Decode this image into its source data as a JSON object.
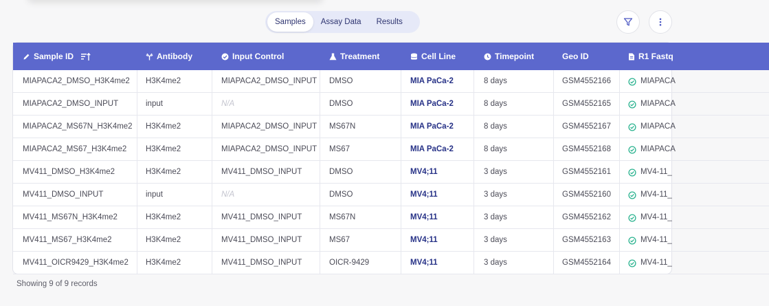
{
  "tabs": [
    {
      "label": "Samples",
      "active": true
    },
    {
      "label": "Assay Data",
      "active": false
    },
    {
      "label": "Results",
      "active": false
    }
  ],
  "toolbar": {
    "filter_icon": "filter-icon",
    "more_icon": "more-vertical-icon"
  },
  "columns": [
    {
      "label": "Sample ID",
      "icon": "pencil-icon"
    },
    {
      "label": "Antibody",
      "icon": "antibody-icon"
    },
    {
      "label": "Input Control",
      "icon": "check-circle-icon"
    },
    {
      "label": "Treatment",
      "icon": "flask-icon"
    },
    {
      "label": "Cell Line",
      "icon": "database-icon"
    },
    {
      "label": "Timepoint",
      "icon": "clock-icon"
    },
    {
      "label": "Geo ID",
      "icon": ""
    },
    {
      "label": "R1 Fastq",
      "icon": "file-icon"
    }
  ],
  "rows": [
    {
      "sample_id": "MIAPACA2_DMSO_H3K4me2",
      "antibody": "H3K4me2",
      "input_control": "MIAPACA2_DMSO_INPUT",
      "treatment": "DMSO",
      "cell_line": "MIA PaCa-2",
      "timepoint": "8 days",
      "geo_id": "GSM4552166",
      "r1_fastq": "MIAPACA"
    },
    {
      "sample_id": "MIAPACA2_DMSO_INPUT",
      "antibody": "input",
      "input_control": "N/A",
      "treatment": "DMSO",
      "cell_line": "MIA PaCa-2",
      "timepoint": "8 days",
      "geo_id": "GSM4552165",
      "r1_fastq": "MIAPACA"
    },
    {
      "sample_id": "MIAPACA2_MS67N_H3K4me2",
      "antibody": "H3K4me2",
      "input_control": "MIAPACA2_DMSO_INPUT",
      "treatment": "MS67N",
      "cell_line": "MIA PaCa-2",
      "timepoint": "8 days",
      "geo_id": "GSM4552167",
      "r1_fastq": "MIAPACA"
    },
    {
      "sample_id": "MIAPACA2_MS67_H3K4me2",
      "antibody": "H3K4me2",
      "input_control": "MIAPACA2_DMSO_INPUT",
      "treatment": "MS67",
      "cell_line": "MIA PaCa-2",
      "timepoint": "8 days",
      "geo_id": "GSM4552168",
      "r1_fastq": "MIAPACA"
    },
    {
      "sample_id": "MV411_DMSO_H3K4me2",
      "antibody": "H3K4me2",
      "input_control": "MV411_DMSO_INPUT",
      "treatment": "DMSO",
      "cell_line": "MV4;11",
      "timepoint": "3 days",
      "geo_id": "GSM4552161",
      "r1_fastq": "MV4-11_"
    },
    {
      "sample_id": "MV411_DMSO_INPUT",
      "antibody": "input",
      "input_control": "N/A",
      "treatment": "DMSO",
      "cell_line": "MV4;11",
      "timepoint": "3 days",
      "geo_id": "GSM4552160",
      "r1_fastq": "MV4-11_"
    },
    {
      "sample_id": "MV411_MS67N_H3K4me2",
      "antibody": "H3K4me2",
      "input_control": "MV411_DMSO_INPUT",
      "treatment": "MS67N",
      "cell_line": "MV4;11",
      "timepoint": "3 days",
      "geo_id": "GSM4552162",
      "r1_fastq": "MV4-11_"
    },
    {
      "sample_id": "MV411_MS67_H3K4me2",
      "antibody": "H3K4me2",
      "input_control": "MV411_DMSO_INPUT",
      "treatment": "MS67",
      "cell_line": "MV4;11",
      "timepoint": "3 days",
      "geo_id": "GSM4552163",
      "r1_fastq": "MV4-11_"
    },
    {
      "sample_id": "MV411_OICR9429_H3K4me2",
      "antibody": "H3K4me2",
      "input_control": "MV411_DMSO_INPUT",
      "treatment": "OICR-9429",
      "cell_line": "MV4;11",
      "timepoint": "3 days",
      "geo_id": "GSM4552164",
      "r1_fastq": "MV4-11_"
    }
  ],
  "footer": {
    "records_text": "Showing 9 of 9 records"
  },
  "colors": {
    "header_bg": "#5c68cd",
    "tab_bg": "#e6e9f8",
    "link": "#273287",
    "check": "#2bb38f",
    "na": "#c4c5cf"
  }
}
